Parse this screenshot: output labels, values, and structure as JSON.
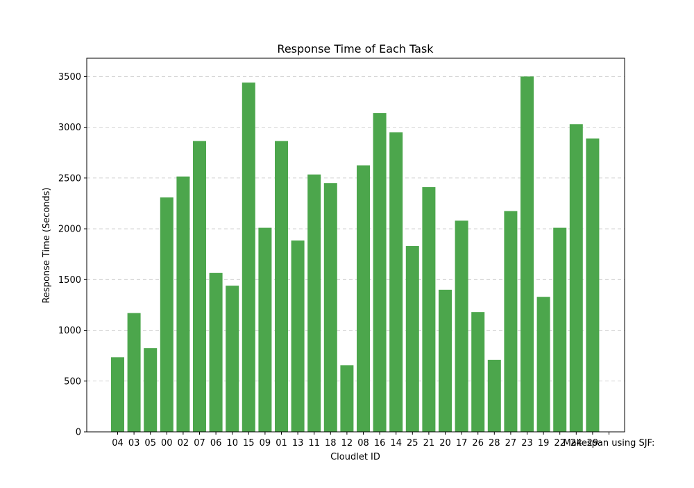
{
  "chart_data": {
    "type": "bar",
    "title": "Response Time of Each Task",
    "xlabel": "Cloudlet ID",
    "ylabel": "Response Time (Seconds)",
    "ylim": [
      0,
      3680
    ],
    "yticks": [
      0,
      500,
      1000,
      1500,
      2000,
      2500,
      3000,
      3500
    ],
    "grid": "y-dashed",
    "colors": {
      "bar": "#4ca64c"
    },
    "categories": [
      "04",
      "03",
      "05",
      "00",
      "02",
      "07",
      "06",
      "10",
      "15",
      "09",
      "01",
      "13",
      "11",
      "18",
      "12",
      "08",
      "16",
      "14",
      "25",
      "21",
      "20",
      "17",
      "26",
      "28",
      "27",
      "23",
      "19",
      "22",
      "24",
      "29",
      "Makespan using SJF:"
    ],
    "values": [
      735,
      1170,
      825,
      2310,
      2515,
      2865,
      1565,
      1440,
      3440,
      2010,
      2865,
      1885,
      2535,
      2450,
      655,
      2625,
      3140,
      2950,
      1830,
      2410,
      1400,
      2080,
      1180,
      710,
      2175,
      3500,
      1330,
      2010,
      3030,
      2890,
      0
    ]
  }
}
